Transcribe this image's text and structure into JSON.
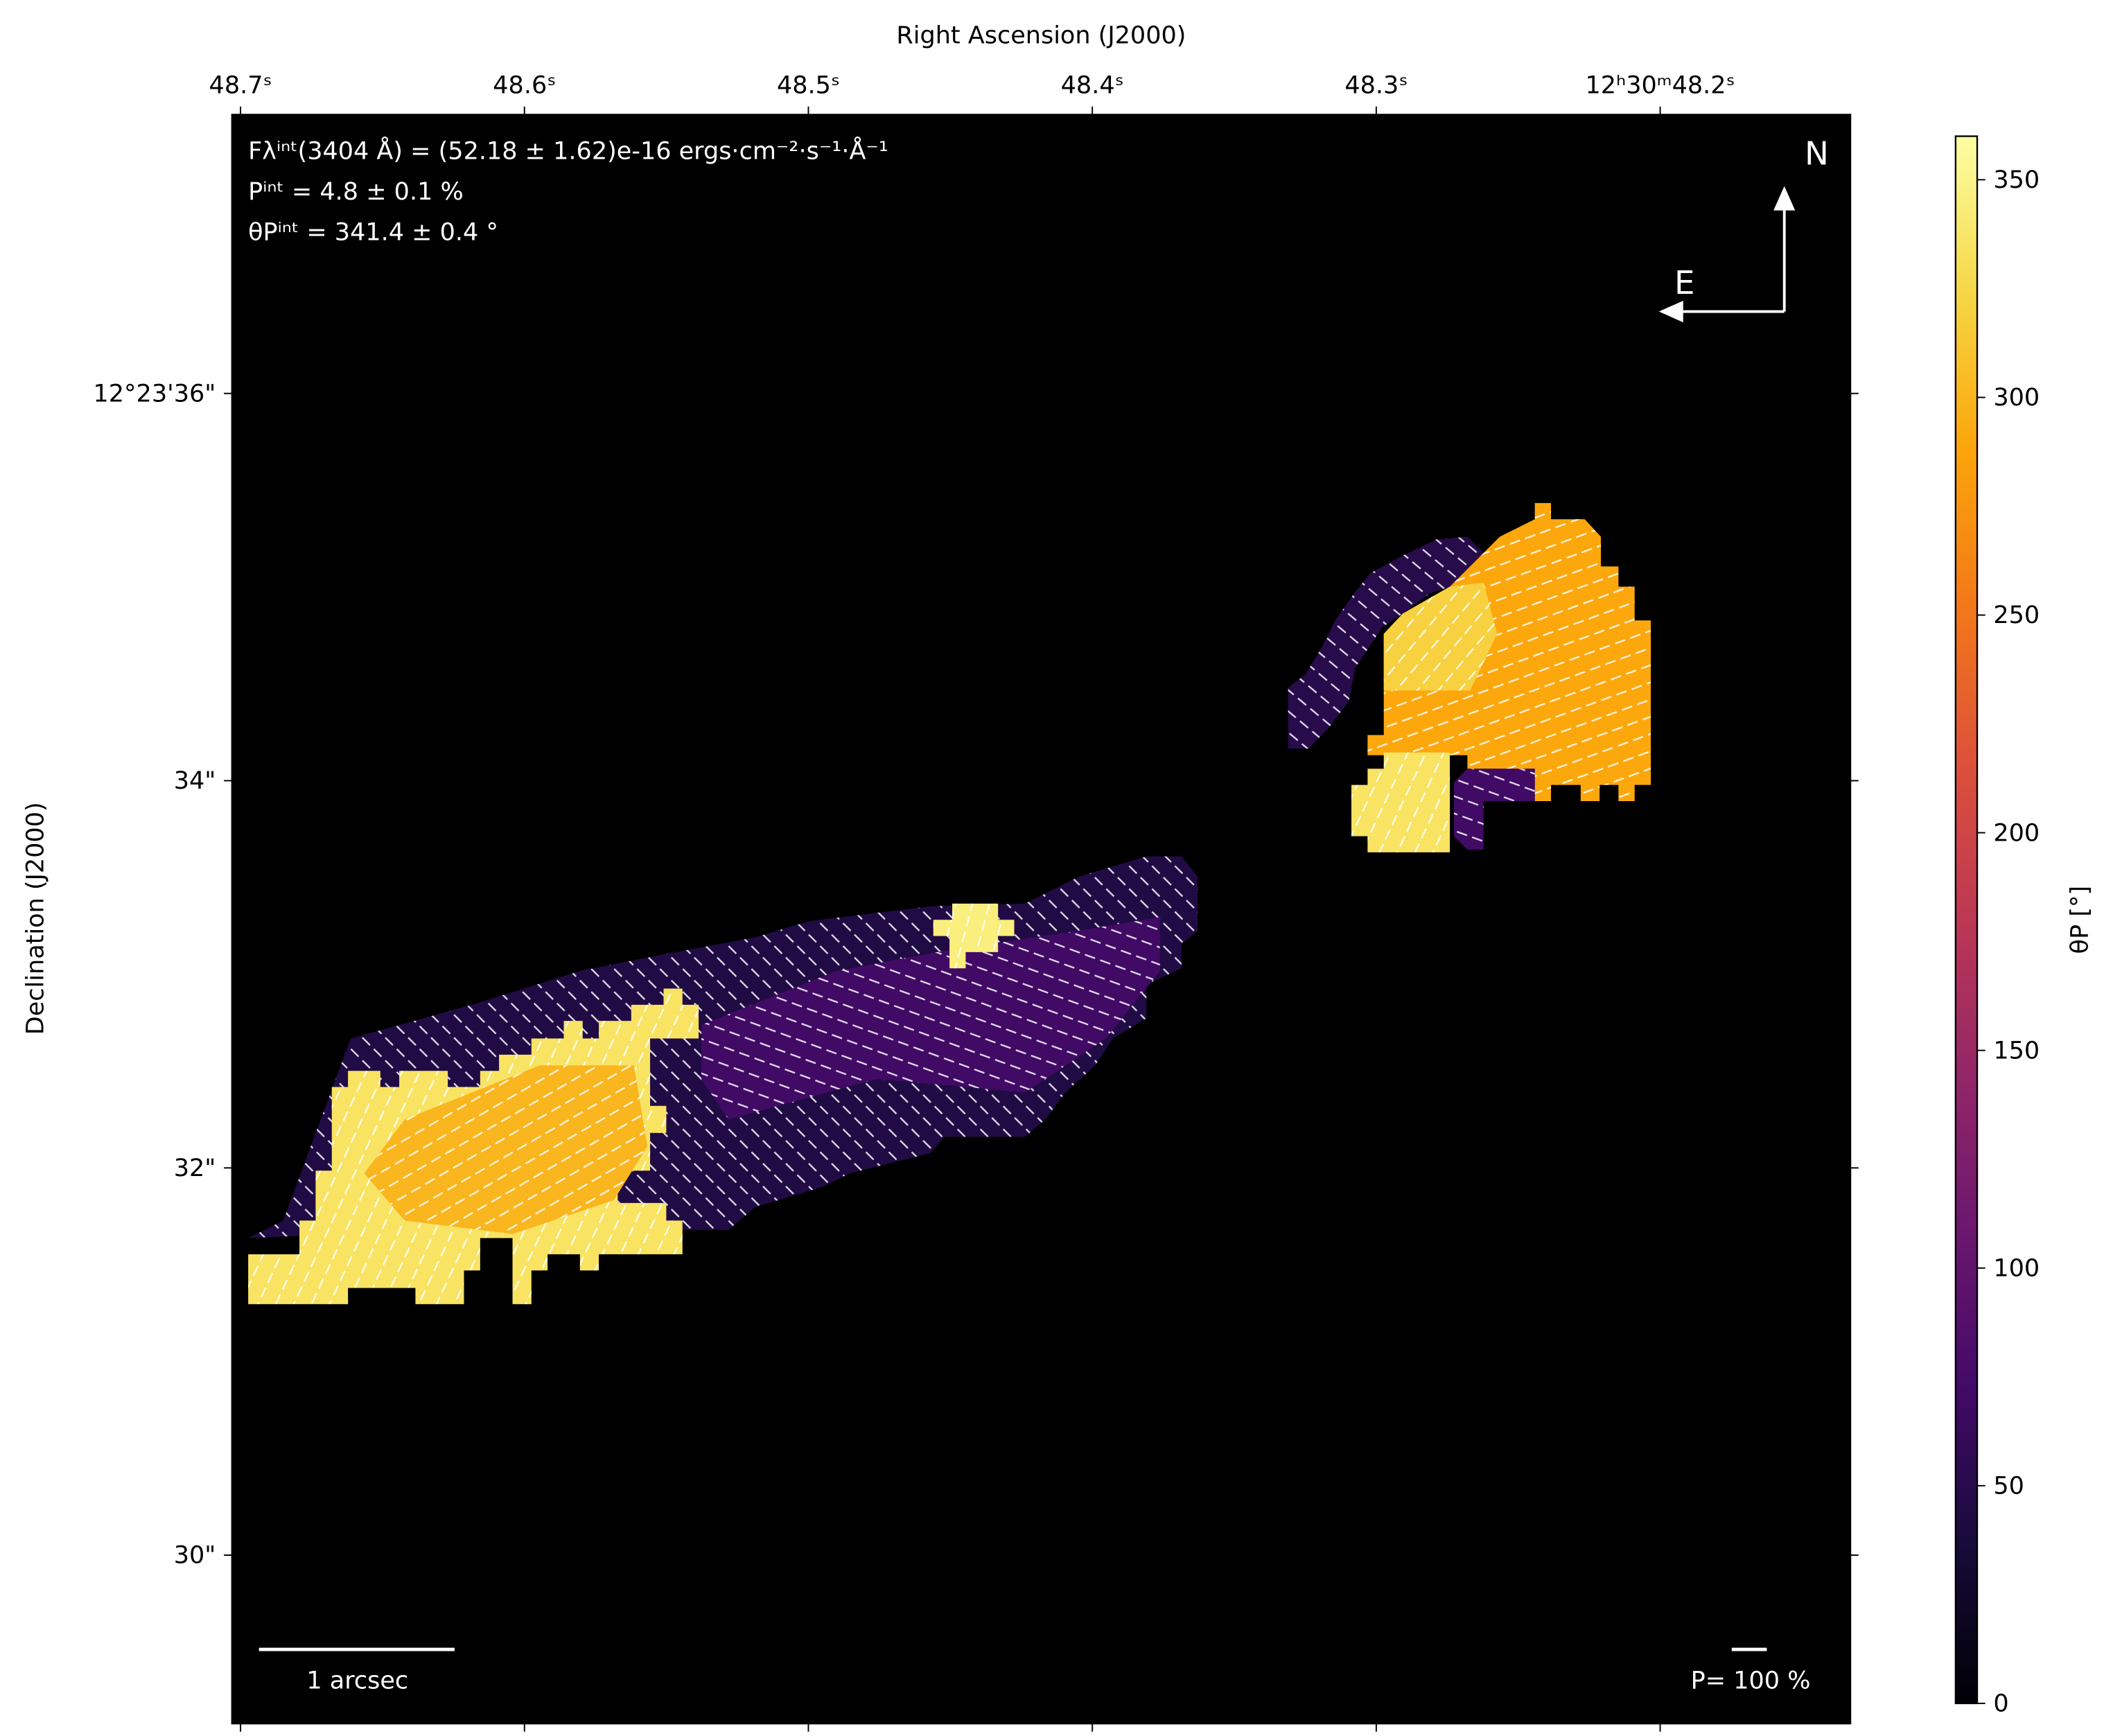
{
  "chart_data": {
    "type": "image",
    "xlabel": "Right Ascension (J2000)",
    "ylabel": "Declination (J2000)",
    "xlim": [
      48.703,
      48.133
    ],
    "ylim": [
      29.13,
      37.44
    ],
    "xticks": [
      {
        "value": 48.7,
        "label": "48.7ˢ"
      },
      {
        "value": 48.6,
        "label": "48.6ˢ"
      },
      {
        "value": 48.5,
        "label": "48.5ˢ"
      },
      {
        "value": 48.4,
        "label": "48.4ˢ"
      },
      {
        "value": 48.3,
        "label": "48.3ˢ"
      },
      {
        "value": 48.2,
        "label": "12ʰ30ᵐ48.2ˢ"
      }
    ],
    "yticks": [
      {
        "value": 36,
        "label": "12°23'36\""
      },
      {
        "value": 34,
        "label": "34\""
      },
      {
        "value": 32,
        "label": "32\""
      },
      {
        "value": 30,
        "label": "30\""
      }
    ],
    "annotations": [
      "Fλⁱⁿᵗ(3404 Å) = (52.18 ± 1.62)e-16 ergs·cm⁻²·s⁻¹·Å⁻¹",
      "Pⁱⁿᵗ = 4.8 ± 0.1 %",
      "θPⁱⁿᵗ = 341.4 ± 0.4 °"
    ],
    "compass": {
      "north": "N",
      "east": "E"
    },
    "scale_bar_label": "1 arcsec",
    "vector_scale_label": "P= 100 %",
    "values": [
      45,
      70,
      335,
      300,
      345,
      50,
      290,
      320,
      335,
      70
    ],
    "colorbar": {
      "label": "θP [°]",
      "lim": [
        0,
        360
      ],
      "ticks": [
        0,
        50,
        100,
        150,
        200,
        250,
        300,
        350
      ],
      "colormap": [
        "#000004",
        "#160b39",
        "#420a68",
        "#6a176e",
        "#932667",
        "#bc3754",
        "#dd513a",
        "#f37819",
        "#fca50a",
        "#f6d746",
        "#fcffa4"
      ]
    }
  }
}
